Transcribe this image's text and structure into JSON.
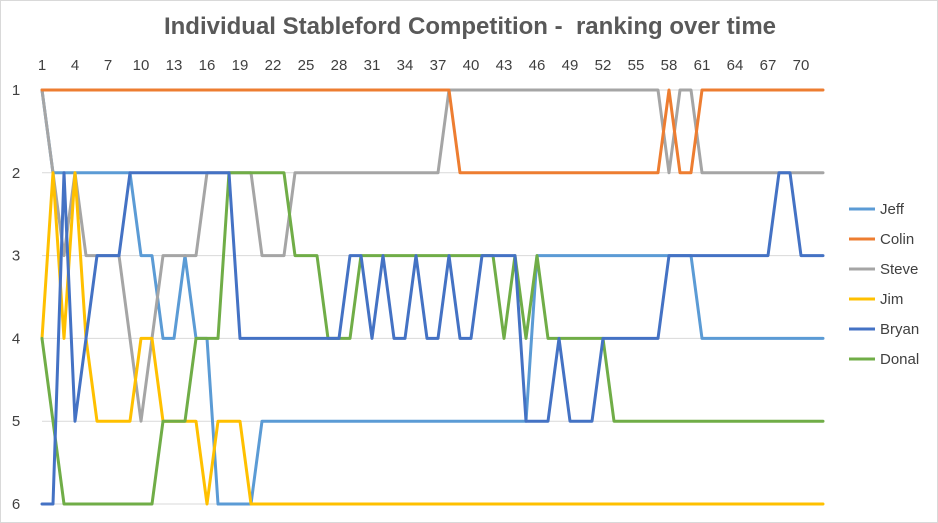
{
  "chart_data": {
    "type": "line",
    "title": "Individual Stableford Competition -  ranking over time",
    "xlabel": "",
    "ylabel": "",
    "x_ticks": [
      1,
      4,
      7,
      10,
      13,
      16,
      19,
      22,
      25,
      28,
      31,
      34,
      37,
      40,
      43,
      46,
      49,
      52,
      55,
      58,
      61,
      64,
      67,
      70
    ],
    "x_range": [
      1,
      72
    ],
    "ylim": [
      1,
      6
    ],
    "y_reversed": true,
    "y_ticks": [
      1,
      2,
      3,
      4,
      5,
      6
    ],
    "grid": true,
    "legend_position": "right",
    "series": [
      {
        "name": "Jeff",
        "color": "#5B9BD5",
        "points": [
          [
            1,
            1
          ],
          [
            2,
            2
          ],
          [
            3,
            2
          ],
          [
            4,
            2
          ],
          [
            5,
            2
          ],
          [
            6,
            2
          ],
          [
            7,
            2
          ],
          [
            8,
            2
          ],
          [
            9,
            2
          ],
          [
            10,
            3
          ],
          [
            11,
            3
          ],
          [
            12,
            4
          ],
          [
            13,
            4
          ],
          [
            14,
            3
          ],
          [
            15,
            4
          ],
          [
            16,
            4
          ],
          [
            17,
            6
          ],
          [
            18,
            6
          ],
          [
            19,
            6
          ],
          [
            20,
            6
          ],
          [
            21,
            5
          ],
          [
            22,
            5
          ],
          [
            45,
            5
          ],
          [
            46,
            3
          ],
          [
            60,
            3
          ],
          [
            61,
            4
          ],
          [
            72,
            4
          ]
        ]
      },
      {
        "name": "Colin",
        "color": "#ED7D31",
        "points": [
          [
            1,
            1
          ],
          [
            37,
            1
          ],
          [
            38,
            1
          ],
          [
            39,
            2
          ],
          [
            56,
            2
          ],
          [
            57,
            2
          ],
          [
            58,
            1
          ],
          [
            59,
            2
          ],
          [
            60,
            2
          ],
          [
            61,
            1
          ],
          [
            72,
            1
          ]
        ]
      },
      {
        "name": "Steve",
        "color": "#A5A5A5",
        "points": [
          [
            1,
            1
          ],
          [
            2,
            2
          ],
          [
            3,
            3
          ],
          [
            4,
            2
          ],
          [
            5,
            3
          ],
          [
            6,
            3
          ],
          [
            7,
            3
          ],
          [
            8,
            3
          ],
          [
            9,
            4
          ],
          [
            10,
            5
          ],
          [
            11,
            4
          ],
          [
            12,
            3
          ],
          [
            13,
            3
          ],
          [
            14,
            3
          ],
          [
            15,
            3
          ],
          [
            16,
            2
          ],
          [
            17,
            2
          ],
          [
            18,
            2
          ],
          [
            19,
            2
          ],
          [
            20,
            2
          ],
          [
            21,
            3
          ],
          [
            22,
            3
          ],
          [
            23,
            3
          ],
          [
            24,
            2
          ],
          [
            25,
            2
          ],
          [
            36,
            2
          ],
          [
            37,
            2
          ],
          [
            38,
            1
          ],
          [
            39,
            1
          ],
          [
            56,
            1
          ],
          [
            57,
            1
          ],
          [
            58,
            2
          ],
          [
            59,
            1
          ],
          [
            60,
            1
          ],
          [
            61,
            2
          ],
          [
            72,
            2
          ]
        ]
      },
      {
        "name": "Jim",
        "color": "#FFC000",
        "points": [
          [
            1,
            4
          ],
          [
            2,
            2
          ],
          [
            3,
            4
          ],
          [
            4,
            2
          ],
          [
            5,
            4
          ],
          [
            6,
            5
          ],
          [
            7,
            5
          ],
          [
            8,
            5
          ],
          [
            9,
            5
          ],
          [
            10,
            4
          ],
          [
            11,
            4
          ],
          [
            12,
            5
          ],
          [
            13,
            5
          ],
          [
            14,
            5
          ],
          [
            15,
            5
          ],
          [
            16,
            6
          ],
          [
            17,
            5
          ],
          [
            18,
            5
          ],
          [
            19,
            5
          ],
          [
            20,
            6
          ],
          [
            72,
            6
          ]
        ]
      },
      {
        "name": "Bryan",
        "color": "#4472C4",
        "points": [
          [
            1,
            6
          ],
          [
            2,
            6
          ],
          [
            3,
            2
          ],
          [
            4,
            5
          ],
          [
            5,
            4
          ],
          [
            6,
            3
          ],
          [
            7,
            3
          ],
          [
            8,
            3
          ],
          [
            9,
            2
          ],
          [
            18,
            2
          ],
          [
            19,
            4
          ],
          [
            20,
            4
          ],
          [
            27,
            4
          ],
          [
            28,
            4
          ],
          [
            29,
            3
          ],
          [
            30,
            3
          ],
          [
            31,
            4
          ],
          [
            32,
            3
          ],
          [
            33,
            4
          ],
          [
            34,
            4
          ],
          [
            35,
            3
          ],
          [
            36,
            4
          ],
          [
            37,
            4
          ],
          [
            38,
            3
          ],
          [
            39,
            4
          ],
          [
            40,
            4
          ],
          [
            41,
            3
          ],
          [
            42,
            3
          ],
          [
            43,
            3
          ],
          [
            44,
            3
          ],
          [
            45,
            5
          ],
          [
            46,
            5
          ],
          [
            47,
            5
          ],
          [
            48,
            4
          ],
          [
            49,
            5
          ],
          [
            50,
            5
          ],
          [
            51,
            5
          ],
          [
            52,
            4
          ],
          [
            53,
            4
          ],
          [
            54,
            4
          ],
          [
            55,
            4
          ],
          [
            56,
            4
          ],
          [
            57,
            4
          ],
          [
            58,
            3
          ],
          [
            67,
            3
          ],
          [
            68,
            2
          ],
          [
            69,
            2
          ],
          [
            70,
            3
          ],
          [
            72,
            3
          ]
        ]
      },
      {
        "name": "Donal",
        "color": "#70AD47",
        "points": [
          [
            1,
            4
          ],
          [
            3,
            6
          ],
          [
            4,
            6
          ],
          [
            11,
            6
          ],
          [
            12,
            5
          ],
          [
            13,
            5
          ],
          [
            14,
            5
          ],
          [
            15,
            4
          ],
          [
            16,
            4
          ],
          [
            17,
            4
          ],
          [
            18,
            2
          ],
          [
            19,
            2
          ],
          [
            20,
            2
          ],
          [
            21,
            2
          ],
          [
            22,
            2
          ],
          [
            23,
            2
          ],
          [
            24,
            3
          ],
          [
            25,
            3
          ],
          [
            26,
            3
          ],
          [
            27,
            4
          ],
          [
            28,
            4
          ],
          [
            29,
            4
          ],
          [
            30,
            3
          ],
          [
            31,
            3
          ],
          [
            32,
            3
          ],
          [
            33,
            3
          ],
          [
            34,
            3
          ],
          [
            35,
            3
          ],
          [
            36,
            3
          ],
          [
            37,
            3
          ],
          [
            38,
            3
          ],
          [
            39,
            3
          ],
          [
            40,
            3
          ],
          [
            41,
            3
          ],
          [
            42,
            3
          ],
          [
            43,
            4
          ],
          [
            44,
            3
          ],
          [
            45,
            4
          ],
          [
            46,
            3
          ],
          [
            47,
            4
          ],
          [
            48,
            4
          ],
          [
            49,
            4
          ],
          [
            50,
            4
          ],
          [
            51,
            4
          ],
          [
            52,
            4
          ],
          [
            53,
            5
          ],
          [
            54,
            5
          ],
          [
            72,
            5
          ]
        ]
      }
    ]
  }
}
